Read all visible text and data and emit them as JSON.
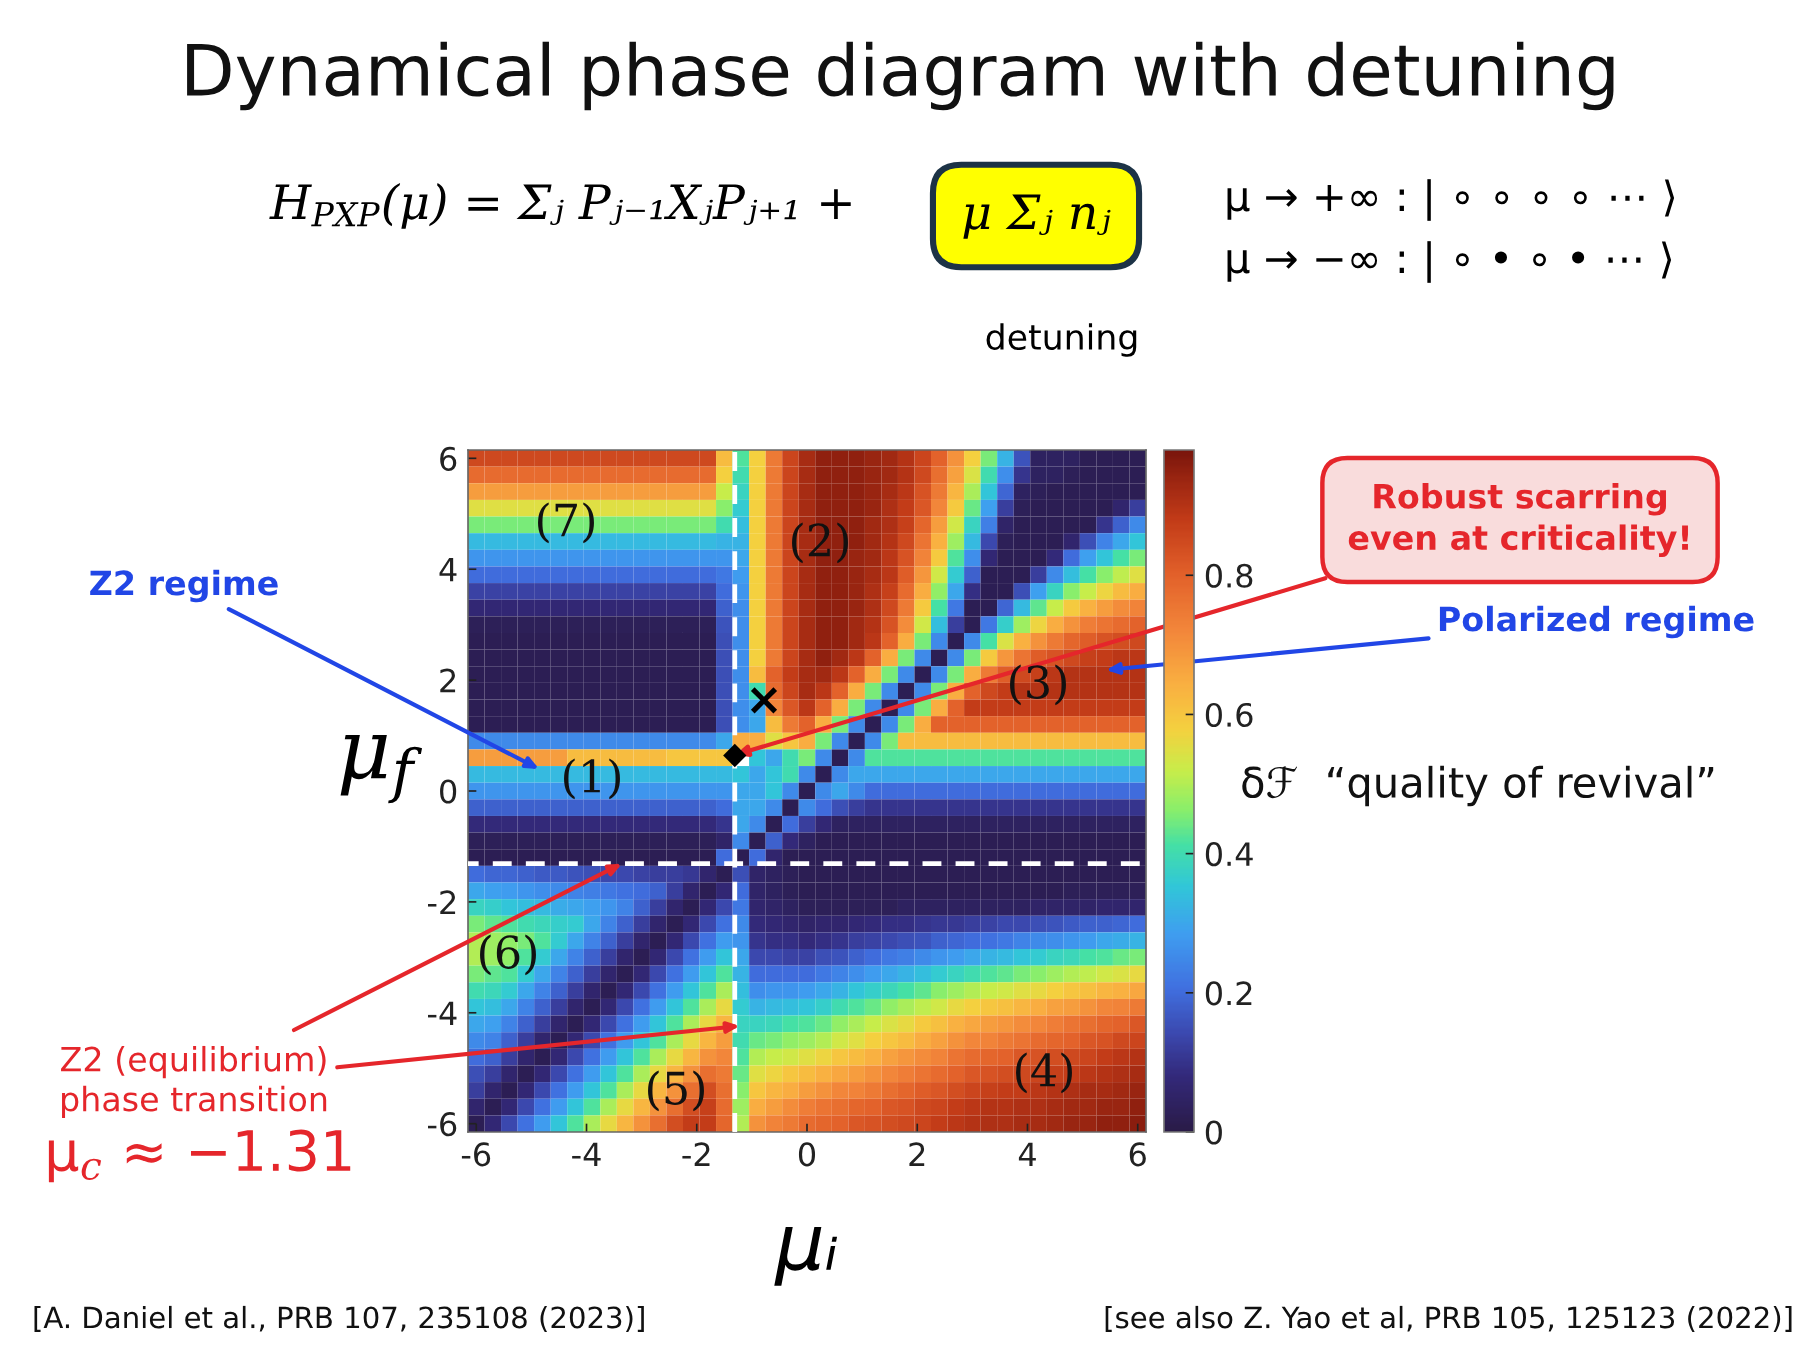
{
  "chart_data": {
    "type": "heatmap",
    "title": "Dynamical phase diagram with detuning",
    "xlabel": "μᵢ",
    "ylabel": "μ$_{f}$",
    "clabel": "δℱ  “quality of revival”",
    "x": [
      -6,
      -5.7,
      -5.4,
      -5.1,
      -4.8,
      -4.5,
      -4.2,
      -3.9,
      -3.6,
      -3.3,
      -3,
      -2.7,
      -2.4,
      -2.1,
      -1.8,
      -1.5,
      -1.2,
      -0.9,
      -0.6,
      -0.3,
      0,
      0.3,
      0.6,
      0.9,
      1.2,
      1.5,
      1.8,
      2.1,
      2.4,
      2.7,
      3,
      3.3,
      3.6,
      3.9,
      4.2,
      4.5,
      4.8,
      5.1,
      5.4,
      5.7,
      6
    ],
    "xlim": [
      -6.15,
      6.15
    ],
    "ylim": [
      -6.15,
      6.15
    ],
    "xticks": [
      -6,
      -4,
      -2,
      0,
      2,
      4,
      6
    ],
    "yticks": [
      -6,
      -4,
      -2,
      0,
      2,
      4,
      6
    ],
    "clim": [
      0,
      0.98
    ],
    "cticks": [
      0,
      0.2,
      0.4,
      0.6,
      0.8
    ],
    "ref_lines": [
      {
        "axis": "x",
        "value": -1.31,
        "color": "#ffffff",
        "line_style": "dashed"
      },
      {
        "axis": "y",
        "value": -1.31,
        "color": "#ffffff",
        "line_style": "dashed"
      }
    ],
    "cells": [
      [
        0.85,
        0.85,
        0.85,
        0.85,
        0.85,
        0.85,
        0.85,
        0.85,
        0.85,
        0.85,
        0.85,
        0.85,
        0.85,
        0.85,
        0.85,
        0.62,
        0.42,
        0.58,
        0.75,
        0.86,
        0.92,
        0.95,
        0.95,
        0.95,
        0.94,
        0.93,
        0.9,
        0.86,
        0.8,
        0.7,
        0.58,
        0.45,
        0.32,
        0.16,
        0.04,
        0.04,
        0.04,
        0.02,
        0.02,
        0.02,
        0.02
      ],
      [
        0.78,
        0.78,
        0.78,
        0.78,
        0.78,
        0.78,
        0.78,
        0.78,
        0.78,
        0.78,
        0.78,
        0.78,
        0.78,
        0.78,
        0.78,
        0.58,
        0.4,
        0.58,
        0.75,
        0.86,
        0.92,
        0.95,
        0.95,
        0.95,
        0.94,
        0.93,
        0.9,
        0.85,
        0.77,
        0.67,
        0.54,
        0.4,
        0.26,
        0.1,
        0.04,
        0.04,
        0.03,
        0.02,
        0.02,
        0.02,
        0.02
      ],
      [
        0.68,
        0.68,
        0.68,
        0.68,
        0.68,
        0.68,
        0.68,
        0.68,
        0.68,
        0.68,
        0.68,
        0.68,
        0.68,
        0.68,
        0.68,
        0.52,
        0.38,
        0.58,
        0.75,
        0.86,
        0.92,
        0.95,
        0.95,
        0.95,
        0.94,
        0.92,
        0.89,
        0.83,
        0.75,
        0.63,
        0.49,
        0.35,
        0.19,
        0.04,
        0.03,
        0.02,
        0.02,
        0.02,
        0.02,
        0.02,
        0.02
      ],
      [
        0.55,
        0.55,
        0.55,
        0.55,
        0.55,
        0.55,
        0.55,
        0.55,
        0.55,
        0.55,
        0.55,
        0.55,
        0.55,
        0.55,
        0.55,
        0.46,
        0.36,
        0.58,
        0.75,
        0.86,
        0.92,
        0.95,
        0.95,
        0.95,
        0.94,
        0.91,
        0.88,
        0.82,
        0.72,
        0.59,
        0.44,
        0.29,
        0.12,
        0.03,
        0.02,
        0.02,
        0.02,
        0.02,
        0.02,
        0.06,
        0.12
      ],
      [
        0.45,
        0.45,
        0.45,
        0.45,
        0.45,
        0.45,
        0.45,
        0.45,
        0.45,
        0.45,
        0.45,
        0.45,
        0.45,
        0.45,
        0.45,
        0.4,
        0.34,
        0.58,
        0.75,
        0.86,
        0.92,
        0.95,
        0.95,
        0.95,
        0.93,
        0.91,
        0.87,
        0.79,
        0.68,
        0.53,
        0.38,
        0.23,
        0.05,
        0.02,
        0.02,
        0.02,
        0.02,
        0.02,
        0.1,
        0.18,
        0.25
      ],
      [
        0.33,
        0.33,
        0.33,
        0.33,
        0.33,
        0.33,
        0.33,
        0.33,
        0.33,
        0.33,
        0.33,
        0.33,
        0.33,
        0.33,
        0.33,
        0.32,
        0.32,
        0.58,
        0.75,
        0.86,
        0.92,
        0.95,
        0.95,
        0.95,
        0.93,
        0.9,
        0.85,
        0.76,
        0.64,
        0.48,
        0.33,
        0.14,
        0.03,
        0.02,
        0.02,
        0.02,
        0.06,
        0.15,
        0.24,
        0.3,
        0.35
      ],
      [
        0.27,
        0.27,
        0.27,
        0.27,
        0.27,
        0.27,
        0.27,
        0.27,
        0.27,
        0.27,
        0.27,
        0.27,
        0.27,
        0.27,
        0.27,
        0.27,
        0.3,
        0.58,
        0.75,
        0.86,
        0.92,
        0.95,
        0.95,
        0.94,
        0.93,
        0.89,
        0.83,
        0.73,
        0.59,
        0.42,
        0.26,
        0.07,
        0.02,
        0.02,
        0.02,
        0.08,
        0.2,
        0.29,
        0.35,
        0.41,
        0.45
      ],
      [
        0.2,
        0.2,
        0.2,
        0.2,
        0.2,
        0.2,
        0.2,
        0.2,
        0.2,
        0.2,
        0.2,
        0.2,
        0.2,
        0.2,
        0.2,
        0.22,
        0.28,
        0.58,
        0.75,
        0.86,
        0.92,
        0.95,
        0.95,
        0.94,
        0.92,
        0.89,
        0.81,
        0.69,
        0.53,
        0.36,
        0.18,
        0.02,
        0.02,
        0.02,
        0.12,
        0.25,
        0.34,
        0.41,
        0.46,
        0.51,
        0.55
      ],
      [
        0.13,
        0.13,
        0.13,
        0.13,
        0.13,
        0.13,
        0.13,
        0.13,
        0.13,
        0.13,
        0.13,
        0.13,
        0.13,
        0.13,
        0.13,
        0.2,
        0.27,
        0.58,
        0.75,
        0.86,
        0.92,
        0.95,
        0.95,
        0.94,
        0.91,
        0.87,
        0.78,
        0.65,
        0.47,
        0.3,
        0.09,
        0.02,
        0.02,
        0.15,
        0.29,
        0.38,
        0.46,
        0.52,
        0.57,
        0.62,
        0.65
      ],
      [
        0.07,
        0.07,
        0.07,
        0.07,
        0.07,
        0.07,
        0.07,
        0.07,
        0.07,
        0.07,
        0.07,
        0.07,
        0.07,
        0.07,
        0.07,
        0.18,
        0.26,
        0.58,
        0.75,
        0.86,
        0.92,
        0.95,
        0.95,
        0.94,
        0.91,
        0.85,
        0.75,
        0.59,
        0.41,
        0.22,
        0.02,
        0.02,
        0.19,
        0.33,
        0.43,
        0.52,
        0.59,
        0.64,
        0.68,
        0.71,
        0.73
      ],
      [
        0.03,
        0.03,
        0.03,
        0.03,
        0.03,
        0.03,
        0.03,
        0.03,
        0.03,
        0.03,
        0.03,
        0.03,
        0.03,
        0.03,
        0.03,
        0.16,
        0.26,
        0.58,
        0.75,
        0.86,
        0.92,
        0.95,
        0.95,
        0.93,
        0.9,
        0.83,
        0.71,
        0.53,
        0.34,
        0.12,
        0.02,
        0.22,
        0.37,
        0.48,
        0.57,
        0.65,
        0.7,
        0.74,
        0.76,
        0.78,
        0.8
      ],
      [
        0.02,
        0.02,
        0.02,
        0.02,
        0.02,
        0.02,
        0.02,
        0.02,
        0.02,
        0.02,
        0.02,
        0.02,
        0.02,
        0.02,
        0.02,
        0.15,
        0.26,
        0.58,
        0.75,
        0.86,
        0.92,
        0.95,
        0.95,
        0.93,
        0.89,
        0.8,
        0.65,
        0.45,
        0.25,
        0.02,
        0.25,
        0.41,
        0.54,
        0.64,
        0.7,
        0.75,
        0.79,
        0.81,
        0.83,
        0.84,
        0.85
      ],
      [
        0.02,
        0.02,
        0.02,
        0.02,
        0.02,
        0.02,
        0.02,
        0.02,
        0.02,
        0.02,
        0.02,
        0.02,
        0.02,
        0.02,
        0.02,
        0.15,
        0.26,
        0.58,
        0.75,
        0.86,
        0.92,
        0.95,
        0.93,
        0.89,
        0.8,
        0.65,
        0.45,
        0.25,
        0.02,
        0.25,
        0.45,
        0.59,
        0.69,
        0.76,
        0.81,
        0.83,
        0.85,
        0.87,
        0.88,
        0.89,
        0.89
      ],
      [
        0.02,
        0.02,
        0.02,
        0.02,
        0.02,
        0.02,
        0.02,
        0.02,
        0.02,
        0.02,
        0.02,
        0.02,
        0.02,
        0.02,
        0.02,
        0.15,
        0.26,
        0.62,
        0.8,
        0.88,
        0.92,
        0.93,
        0.89,
        0.8,
        0.65,
        0.45,
        0.25,
        0.02,
        0.25,
        0.45,
        0.65,
        0.75,
        0.81,
        0.85,
        0.87,
        0.89,
        0.9,
        0.9,
        0.9,
        0.9,
        0.9
      ],
      [
        0.02,
        0.02,
        0.02,
        0.02,
        0.02,
        0.02,
        0.02,
        0.02,
        0.02,
        0.02,
        0.02,
        0.02,
        0.02,
        0.02,
        0.02,
        0.15,
        0.26,
        0.4,
        0.78,
        0.86,
        0.92,
        0.89,
        0.8,
        0.65,
        0.45,
        0.25,
        0.02,
        0.25,
        0.45,
        0.65,
        0.8,
        0.85,
        0.88,
        0.9,
        0.9,
        0.9,
        0.9,
        0.9,
        0.9,
        0.9,
        0.9
      ],
      [
        0.02,
        0.02,
        0.02,
        0.02,
        0.02,
        0.02,
        0.02,
        0.02,
        0.02,
        0.02,
        0.02,
        0.02,
        0.02,
        0.02,
        0.02,
        0.15,
        0.26,
        0.3,
        0.72,
        0.82,
        0.89,
        0.8,
        0.65,
        0.45,
        0.25,
        0.02,
        0.25,
        0.45,
        0.65,
        0.8,
        0.88,
        0.88,
        0.88,
        0.88,
        0.88,
        0.88,
        0.88,
        0.88,
        0.88,
        0.88,
        0.88
      ],
      [
        0.02,
        0.02,
        0.02,
        0.02,
        0.02,
        0.02,
        0.02,
        0.02,
        0.02,
        0.02,
        0.02,
        0.02,
        0.02,
        0.02,
        0.02,
        0.15,
        0.26,
        0.3,
        0.62,
        0.75,
        0.8,
        0.65,
        0.45,
        0.25,
        0.02,
        0.25,
        0.45,
        0.65,
        0.8,
        0.8,
        0.8,
        0.8,
        0.8,
        0.8,
        0.8,
        0.8,
        0.8,
        0.8,
        0.8,
        0.8,
        0.8
      ],
      [
        0.25,
        0.25,
        0.25,
        0.25,
        0.25,
        0.25,
        0.25,
        0.25,
        0.25,
        0.25,
        0.25,
        0.25,
        0.25,
        0.25,
        0.25,
        0.3,
        0.65,
        0.65,
        0.55,
        0.6,
        0.65,
        0.45,
        0.25,
        0.02,
        0.25,
        0.45,
        0.62,
        0.62,
        0.62,
        0.62,
        0.62,
        0.62,
        0.62,
        0.62,
        0.62,
        0.62,
        0.62,
        0.62,
        0.62,
        0.62,
        0.62
      ],
      [
        0.68,
        0.68,
        0.68,
        0.68,
        0.68,
        0.68,
        0.62,
        0.62,
        0.62,
        0.62,
        0.62,
        0.62,
        0.6,
        0.6,
        0.6,
        0.6,
        null,
        0.35,
        0.3,
        0.4,
        0.45,
        0.25,
        0.02,
        0.25,
        0.42,
        0.42,
        0.42,
        0.42,
        0.42,
        0.42,
        0.42,
        0.42,
        0.42,
        0.42,
        0.42,
        0.42,
        0.42,
        0.42,
        0.42,
        0.42,
        0.42
      ],
      [
        0.33,
        0.33,
        0.33,
        0.33,
        0.33,
        0.33,
        0.33,
        0.33,
        0.33,
        0.33,
        0.33,
        0.33,
        0.33,
        0.33,
        0.33,
        0.33,
        0.35,
        0.3,
        0.35,
        0.4,
        0.25,
        0.02,
        0.25,
        0.3,
        0.3,
        0.3,
        0.3,
        0.3,
        0.3,
        0.3,
        0.3,
        0.3,
        0.3,
        0.3,
        0.3,
        0.3,
        0.3,
        0.3,
        0.3,
        0.3,
        0.3
      ],
      [
        0.27,
        0.27,
        0.27,
        0.27,
        0.27,
        0.27,
        0.27,
        0.27,
        0.27,
        0.27,
        0.27,
        0.27,
        0.27,
        0.27,
        0.27,
        0.27,
        0.3,
        0.3,
        0.35,
        0.25,
        0.02,
        0.25,
        0.3,
        0.25,
        0.2,
        0.2,
        0.2,
        0.2,
        0.2,
        0.2,
        0.2,
        0.2,
        0.2,
        0.2,
        0.2,
        0.2,
        0.2,
        0.2,
        0.2,
        0.2,
        0.2
      ],
      [
        0.18,
        0.18,
        0.18,
        0.18,
        0.18,
        0.18,
        0.18,
        0.18,
        0.18,
        0.18,
        0.18,
        0.18,
        0.18,
        0.18,
        0.18,
        0.2,
        0.3,
        0.3,
        0.25,
        0.02,
        0.25,
        0.2,
        0.15,
        0.12,
        0.1,
        0.1,
        0.1,
        0.1,
        0.1,
        0.1,
        0.1,
        0.1,
        0.1,
        0.1,
        0.1,
        0.1,
        0.1,
        0.1,
        0.1,
        0.1,
        0.1
      ],
      [
        0.08,
        0.08,
        0.08,
        0.08,
        0.08,
        0.08,
        0.08,
        0.08,
        0.08,
        0.08,
        0.08,
        0.08,
        0.08,
        0.08,
        0.08,
        0.1,
        0.3,
        0.25,
        0.02,
        0.2,
        0.12,
        0.07,
        0.04,
        0.04,
        0.04,
        0.04,
        0.04,
        0.04,
        0.04,
        0.04,
        0.04,
        0.04,
        0.04,
        0.04,
        0.04,
        0.04,
        0.04,
        0.04,
        0.04,
        0.04,
        0.04
      ],
      [
        0.03,
        0.03,
        0.03,
        0.03,
        0.03,
        0.03,
        0.03,
        0.03,
        0.03,
        0.03,
        0.03,
        0.03,
        0.03,
        0.03,
        0.03,
        0.05,
        0.25,
        0.02,
        0.18,
        0.08,
        0.04,
        0.02,
        0.02,
        0.02,
        0.02,
        0.02,
        0.02,
        0.02,
        0.02,
        0.02,
        0.02,
        0.02,
        0.02,
        0.02,
        0.02,
        0.02,
        0.02,
        0.02,
        0.02,
        0.02,
        0.02
      ],
      [
        0.02,
        0.02,
        0.02,
        0.02,
        0.02,
        0.02,
        0.02,
        0.02,
        0.02,
        0.02,
        0.02,
        0.02,
        0.02,
        0.02,
        0.02,
        0.2,
        0.02,
        0.2,
        0.06,
        0.02,
        0.02,
        0.02,
        0.02,
        0.02,
        0.02,
        0.02,
        0.02,
        0.02,
        0.02,
        0.02,
        0.02,
        0.02,
        0.02,
        0.02,
        0.02,
        0.02,
        0.02,
        0.02,
        0.02,
        0.02,
        0.02
      ],
      [
        0.2,
        0.19,
        0.19,
        0.18,
        0.17,
        0.17,
        0.16,
        0.15,
        0.14,
        0.14,
        0.13,
        0.12,
        0.12,
        0.11,
        0.06,
        0.02,
        0.15,
        0.05,
        0.04,
        0.03,
        0.02,
        0.02,
        0.02,
        0.02,
        0.02,
        0.02,
        0.02,
        0.02,
        0.02,
        0.02,
        0.02,
        0.02,
        0.02,
        0.02,
        0.02,
        0.02,
        0.02,
        0.02,
        0.02,
        0.02,
        0.02
      ],
      [
        0.3,
        0.29,
        0.28,
        0.27,
        0.26,
        0.25,
        0.24,
        0.23,
        0.22,
        0.21,
        0.2,
        0.18,
        0.12,
        0.06,
        0.02,
        0.07,
        0.2,
        0.05,
        0.04,
        0.03,
        0.02,
        0.02,
        0.02,
        0.02,
        0.02,
        0.02,
        0.02,
        0.02,
        0.02,
        0.02,
        0.02,
        0.02,
        0.02,
        0.02,
        0.02,
        0.02,
        0.03,
        0.03,
        0.03,
        0.03,
        0.03
      ],
      [
        0.38,
        0.37,
        0.35,
        0.34,
        0.33,
        0.31,
        0.3,
        0.29,
        0.27,
        0.24,
        0.18,
        0.12,
        0.06,
        0.02,
        0.07,
        0.14,
        0.22,
        0.06,
        0.05,
        0.04,
        0.03,
        0.03,
        0.03,
        0.03,
        0.03,
        0.03,
        0.04,
        0.04,
        0.04,
        0.04,
        0.04,
        0.04,
        0.04,
        0.04,
        0.05,
        0.05,
        0.05,
        0.05,
        0.06,
        0.06,
        0.06
      ],
      [
        0.45,
        0.43,
        0.42,
        0.4,
        0.39,
        0.37,
        0.36,
        0.3,
        0.24,
        0.18,
        0.12,
        0.06,
        0.02,
        0.07,
        0.14,
        0.21,
        0.25,
        0.08,
        0.07,
        0.06,
        0.05,
        0.06,
        0.06,
        0.07,
        0.08,
        0.09,
        0.09,
        0.1,
        0.11,
        0.11,
        0.12,
        0.13,
        0.14,
        0.14,
        0.15,
        0.16,
        0.17,
        0.18,
        0.18,
        0.19,
        0.2
      ],
      [
        0.5,
        0.48,
        0.47,
        0.45,
        0.42,
        0.36,
        0.3,
        0.24,
        0.18,
        0.12,
        0.06,
        0.02,
        0.07,
        0.14,
        0.21,
        0.28,
        0.27,
        0.1,
        0.09,
        0.09,
        0.08,
        0.09,
        0.1,
        0.12,
        0.13,
        0.14,
        0.15,
        0.16,
        0.18,
        0.19,
        0.2,
        0.21,
        0.22,
        0.24,
        0.25,
        0.26,
        0.27,
        0.28,
        0.3,
        0.31,
        0.32
      ],
      [
        0.5,
        0.48,
        0.47,
        0.42,
        0.36,
        0.3,
        0.24,
        0.18,
        0.12,
        0.06,
        0.02,
        0.07,
        0.14,
        0.21,
        0.28,
        0.35,
        0.3,
        0.14,
        0.14,
        0.13,
        0.13,
        0.15,
        0.16,
        0.18,
        0.2,
        0.22,
        0.23,
        0.25,
        0.27,
        0.28,
        0.3,
        0.32,
        0.33,
        0.35,
        0.36,
        0.38,
        0.39,
        0.41,
        0.42,
        0.44,
        0.45
      ],
      [
        0.45,
        0.43,
        0.42,
        0.36,
        0.3,
        0.24,
        0.18,
        0.12,
        0.06,
        0.02,
        0.07,
        0.14,
        0.21,
        0.28,
        0.35,
        0.42,
        0.32,
        0.2,
        0.2,
        0.2,
        0.2,
        0.22,
        0.24,
        0.26,
        0.28,
        0.3,
        0.32,
        0.34,
        0.36,
        0.38,
        0.4,
        0.42,
        0.43,
        0.45,
        0.46,
        0.48,
        0.5,
        0.51,
        0.53,
        0.54,
        0.56
      ],
      [
        0.4,
        0.39,
        0.36,
        0.3,
        0.24,
        0.18,
        0.12,
        0.06,
        0.02,
        0.07,
        0.14,
        0.21,
        0.28,
        0.35,
        0.42,
        0.49,
        0.34,
        0.26,
        0.27,
        0.27,
        0.28,
        0.3,
        0.32,
        0.35,
        0.37,
        0.39,
        0.41,
        0.43,
        0.46,
        0.48,
        0.5,
        0.52,
        0.53,
        0.55,
        0.56,
        0.58,
        0.6,
        0.61,
        0.63,
        0.64,
        0.66
      ],
      [
        0.35,
        0.34,
        0.3,
        0.24,
        0.18,
        0.12,
        0.06,
        0.02,
        0.07,
        0.14,
        0.21,
        0.28,
        0.35,
        0.42,
        0.49,
        0.56,
        0.36,
        0.32,
        0.33,
        0.34,
        0.35,
        0.37,
        0.4,
        0.42,
        0.44,
        0.47,
        0.49,
        0.51,
        0.53,
        0.56,
        0.58,
        0.6,
        0.61,
        0.63,
        0.65,
        0.67,
        0.68,
        0.7,
        0.72,
        0.73,
        0.75
      ],
      [
        0.3,
        0.29,
        0.24,
        0.18,
        0.12,
        0.06,
        0.02,
        0.07,
        0.14,
        0.21,
        0.28,
        0.35,
        0.42,
        0.49,
        0.56,
        0.63,
        0.38,
        0.38,
        0.39,
        0.41,
        0.42,
        0.44,
        0.47,
        0.49,
        0.52,
        0.54,
        0.56,
        0.59,
        0.61,
        0.64,
        0.66,
        0.68,
        0.69,
        0.71,
        0.72,
        0.74,
        0.76,
        0.77,
        0.79,
        0.8,
        0.82
      ],
      [
        0.25,
        0.24,
        0.18,
        0.12,
        0.06,
        0.02,
        0.07,
        0.14,
        0.21,
        0.28,
        0.35,
        0.42,
        0.49,
        0.56,
        0.63,
        0.68,
        0.4,
        0.44,
        0.45,
        0.47,
        0.48,
        0.5,
        0.53,
        0.55,
        0.58,
        0.6,
        0.62,
        0.65,
        0.67,
        0.7,
        0.72,
        0.73,
        0.75,
        0.76,
        0.78,
        0.79,
        0.8,
        0.82,
        0.83,
        0.85,
        0.86
      ],
      [
        0.2,
        0.18,
        0.12,
        0.06,
        0.02,
        0.07,
        0.14,
        0.21,
        0.28,
        0.35,
        0.42,
        0.49,
        0.56,
        0.63,
        0.7,
        0.72,
        0.42,
        0.5,
        0.52,
        0.53,
        0.55,
        0.57,
        0.6,
        0.62,
        0.64,
        0.67,
        0.69,
        0.71,
        0.73,
        0.76,
        0.78,
        0.79,
        0.8,
        0.82,
        0.83,
        0.84,
        0.85,
        0.86,
        0.88,
        0.89,
        0.9
      ],
      [
        0.15,
        0.12,
        0.06,
        0.02,
        0.07,
        0.14,
        0.21,
        0.28,
        0.35,
        0.42,
        0.49,
        0.56,
        0.63,
        0.7,
        0.77,
        0.75,
        0.44,
        0.55,
        0.57,
        0.6,
        0.62,
        0.64,
        0.66,
        0.68,
        0.7,
        0.72,
        0.74,
        0.76,
        0.78,
        0.8,
        0.82,
        0.83,
        0.84,
        0.85,
        0.86,
        0.87,
        0.88,
        0.89,
        0.9,
        0.91,
        0.92
      ],
      [
        0.12,
        0.06,
        0.02,
        0.07,
        0.14,
        0.21,
        0.28,
        0.35,
        0.42,
        0.49,
        0.56,
        0.63,
        0.7,
        0.77,
        0.84,
        0.77,
        0.46,
        0.6,
        0.63,
        0.65,
        0.68,
        0.7,
        0.72,
        0.73,
        0.75,
        0.77,
        0.79,
        0.81,
        0.82,
        0.84,
        0.86,
        0.87,
        0.88,
        0.88,
        0.89,
        0.9,
        0.91,
        0.92,
        0.92,
        0.93,
        0.94
      ],
      [
        0.06,
        0.02,
        0.07,
        0.14,
        0.21,
        0.28,
        0.35,
        0.42,
        0.49,
        0.56,
        0.63,
        0.7,
        0.77,
        0.84,
        0.87,
        0.78,
        0.48,
        0.65,
        0.68,
        0.71,
        0.74,
        0.76,
        0.77,
        0.79,
        0.8,
        0.82,
        0.83,
        0.85,
        0.86,
        0.88,
        0.89,
        0.9,
        0.9,
        0.91,
        0.91,
        0.92,
        0.93,
        0.93,
        0.94,
        0.94,
        0.95
      ],
      [
        0.02,
        0.07,
        0.14,
        0.21,
        0.28,
        0.35,
        0.42,
        0.49,
        0.56,
        0.63,
        0.7,
        0.77,
        0.84,
        0.88,
        0.88,
        0.79,
        0.5,
        0.7,
        0.73,
        0.75,
        0.78,
        0.79,
        0.8,
        0.82,
        0.83,
        0.84,
        0.85,
        0.86,
        0.88,
        0.89,
        0.9,
        0.91,
        0.91,
        0.92,
        0.92,
        0.93,
        0.94,
        0.94,
        0.95,
        0.95,
        0.96
      ]
    ],
    "annotations": [
      "H$_{PXP}$(μ) = Σⱼ Pⱼ₋₁XⱼPⱼ₊₁ +",
      "μ Σⱼ nⱼ",
      "detuning",
      "μ → +∞ : | ∘ ∘ ∘ ∘ ⋯ ⟩",
      "μ → −∞ : | ∘ • ∘ • ⋯ ⟩",
      "Z2 regime",
      "Polarized regime",
      "Robust scarring\neven at criticality!",
      "Z2 (equilibrium)\nphase transition",
      "μ$_{c}$ ≈ −1.31",
      "[A. Daniel et al., PRB 107, 235108 (2023)]",
      "[see also Z. Yao et al, PRB 105, 125123 (2022)]",
      "(1)",
      "(2)",
      "(3)",
      "(4)",
      "(5)",
      "(6)",
      "(7)",
      "◆",
      "×"
    ]
  }
}
